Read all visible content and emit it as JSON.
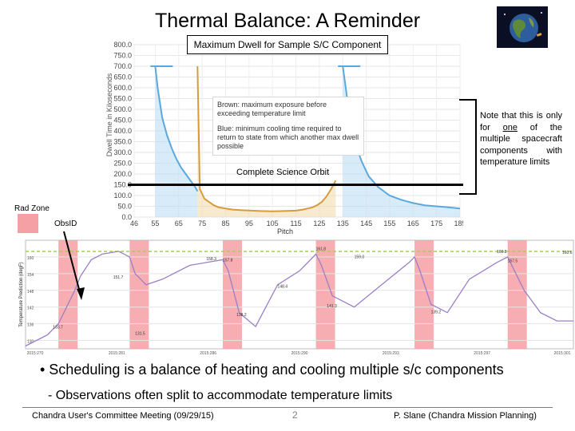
{
  "slide": {
    "title": "Thermal Balance: A Reminder",
    "bullet_main": "• Scheduling is a balance of heating and cooling multiple s/c components",
    "bullet_sub": "- Observations often split to accommodate temperature limits"
  },
  "footer": {
    "left": "Chandra User's Committee Meeting (09/29/15)",
    "page_number": "2",
    "right": "P. Slane (Chandra Mission Planning)"
  },
  "top_chart": {
    "title": "Maximum Dwell for Sample S/C Component",
    "legend_brown": "Brown: maximum exposure before exceeding temperature limit",
    "legend_blue": "Blue: minimum cooling time required to return to state from which another max dwell possible",
    "orbit_label": "Complete Science Orbit",
    "colors": {
      "brown": "#d79b3c",
      "brown_fill": "#f1d9a6",
      "blue": "#5aa9dd",
      "blue_fill": "#b8daf2",
      "orbit_line": "#000000"
    }
  },
  "note": {
    "before": "Note that this is only for ",
    "underlined": "one",
    "after": " of the multiple spacecraft components with temperature limits"
  },
  "legend_labels": {
    "radzone": "Rad Zone",
    "obsid": "ObsID"
  },
  "bottom_chart": {
    "colors": {
      "radzone": "#f4a0a4",
      "limit_line": "#9fd24a",
      "curve": "#9a7fc8",
      "annotation": "#333333",
      "arrow": "#000000"
    },
    "peak_labels": [
      "151.7",
      "158.3",
      "157.8",
      "148.4",
      "161.8",
      "159.0",
      "160.8",
      "157.5",
      "160.6"
    ],
    "low_labels": [
      "131.5",
      "138.2",
      "133.7",
      "141.3",
      "139.2"
    ]
  },
  "chart_data": [
    {
      "type": "area",
      "title": "Maximum Dwell for Sample S/C Component",
      "xlabel": "Pitch",
      "ylabel": "Dwell Time in Kiloseconds",
      "x_ticks": [
        "46",
        "55",
        "65",
        "75",
        "85",
        "95",
        "105",
        "115",
        "125",
        "135",
        "145",
        "155",
        "165",
        "175",
        "185"
      ],
      "y_ticks": [
        "0.0",
        "50.0",
        "100.0",
        "150.0",
        "200.0",
        "250.0",
        "300.0",
        "350.0",
        "400.0",
        "450.0",
        "500.0",
        "550.0",
        "600.0",
        "650.0",
        "700.0",
        "750.0",
        "800.0"
      ],
      "xlim": [
        46,
        185
      ],
      "ylim": [
        0,
        800
      ],
      "grid": true,
      "series": [
        {
          "name": "Brown: maximum exposure before exceeding temperature limit",
          "x": [
            73,
            74,
            76,
            78,
            80,
            82,
            85,
            88,
            92,
            96,
            100,
            105,
            110,
            115,
            118,
            120,
            122,
            124,
            126,
            128,
            130,
            132
          ],
          "y": [
            700,
            130,
            85,
            70,
            55,
            45,
            40,
            35,
            32,
            30,
            28,
            27,
            28,
            30,
            35,
            40,
            45,
            55,
            70,
            95,
            130,
            170
          ]
        },
        {
          "name": "Blue: minimum cooling time required to return to state from which another max dwell possible",
          "x": [
            55,
            56,
            58,
            60,
            62,
            64,
            66,
            68,
            70,
            72,
            73,
            135,
            136,
            138,
            140,
            143,
            146,
            150,
            155,
            160,
            165,
            170,
            175,
            180,
            185
          ],
          "y": [
            700,
            600,
            460,
            380,
            320,
            270,
            230,
            200,
            170,
            140,
            120,
            700,
            620,
            460,
            350,
            260,
            190,
            140,
            100,
            80,
            65,
            55,
            50,
            45,
            40
          ]
        }
      ],
      "annotations": [
        "Complete Science Orbit"
      ]
    },
    {
      "type": "line",
      "ylabel": "Temperature Prediction (degF)",
      "x_ticks": [
        "2015:270",
        "2015:281",
        "2015:286",
        "2015:290",
        "2015:293",
        "2015:297",
        "2015:301"
      ],
      "y_ticks": [
        "130",
        "136",
        "142",
        "148",
        "154",
        "160"
      ],
      "ylim": [
        127,
        166
      ],
      "limit_line": 162,
      "rad_zones": [
        [
          0.06,
          0.095
        ],
        [
          0.19,
          0.225
        ],
        [
          0.36,
          0.395
        ],
        [
          0.53,
          0.565
        ],
        [
          0.71,
          0.745
        ],
        [
          0.88,
          0.915
        ]
      ],
      "series": [
        {
          "name": "",
          "x": [
            0.0,
            0.02,
            0.04,
            0.06,
            0.075,
            0.09,
            0.1,
            0.12,
            0.14,
            0.17,
            0.19,
            0.2,
            0.22,
            0.25,
            0.3,
            0.36,
            0.37,
            0.39,
            0.42,
            0.46,
            0.5,
            0.53,
            0.54,
            0.56,
            0.6,
            0.65,
            0.7,
            0.71,
            0.72,
            0.74,
            0.77,
            0.81,
            0.86,
            0.88,
            0.89,
            0.91,
            0.94,
            0.97,
            1.0
          ],
          "y": [
            128,
            130,
            132,
            136,
            142,
            148,
            153,
            159,
            161,
            162,
            160,
            154,
            150,
            152,
            157,
            159,
            155,
            140,
            135,
            150,
            155,
            161,
            157,
            146,
            142,
            150,
            158,
            160,
            155,
            143,
            140,
            152,
            158,
            160,
            156,
            148,
            140,
            137,
            137
          ]
        }
      ]
    }
  ]
}
